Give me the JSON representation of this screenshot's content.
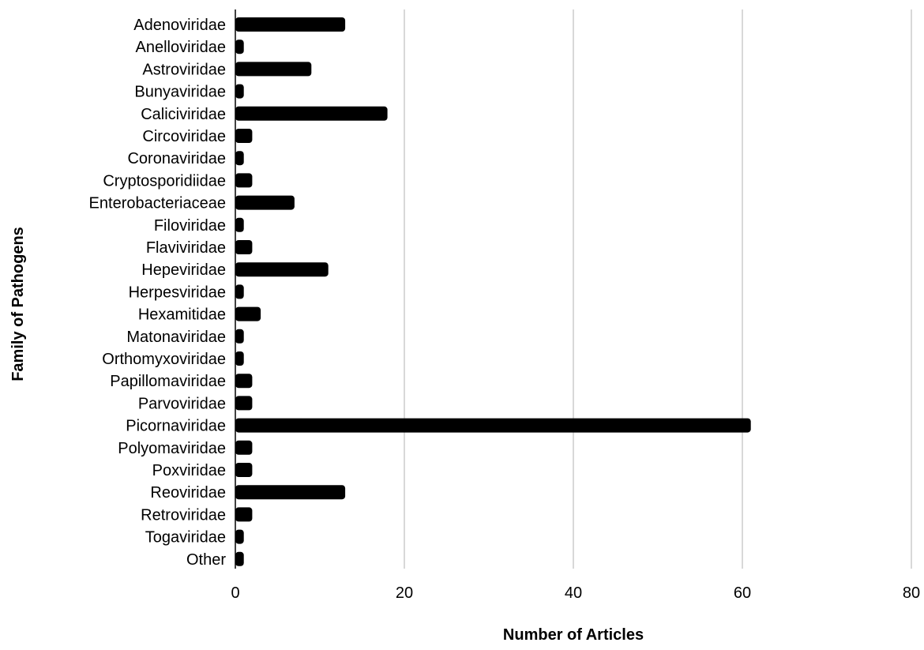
{
  "chart_data": {
    "type": "bar",
    "orientation": "horizontal",
    "title": "",
    "xlabel": "Number of Articles",
    "ylabel": "Family of Pathogens",
    "xlim": [
      0,
      80
    ],
    "xticks": [
      0,
      20,
      40,
      60,
      80
    ],
    "grid": "vertical",
    "legend": "none",
    "bar_color": "#000000",
    "grid_color": "#cccccc",
    "categories": [
      "Adenoviridae",
      "Anelloviridae",
      "Astroviridae",
      "Bunyaviridae",
      "Caliciviridae",
      "Circoviridae",
      "Coronaviridae",
      "Cryptosporidiidae",
      "Enterobacteriaceae",
      "Filoviridae",
      "Flaviviridae",
      "Hepeviridae",
      "Herpesviridae",
      "Hexamitidae",
      "Matonaviridae",
      "Orthomyxoviridae",
      "Papillomaviridae",
      "Parvoviridae",
      "Picornaviridae",
      "Polyomaviridae",
      "Poxviridae",
      "Reoviridae",
      "Retroviridae",
      "Togaviridae",
      "Other"
    ],
    "values": [
      13,
      1,
      9,
      1,
      18,
      2,
      1,
      2,
      7,
      1,
      2,
      11,
      1,
      3,
      1,
      1,
      2,
      2,
      61,
      2,
      2,
      13,
      2,
      1,
      1
    ]
  }
}
